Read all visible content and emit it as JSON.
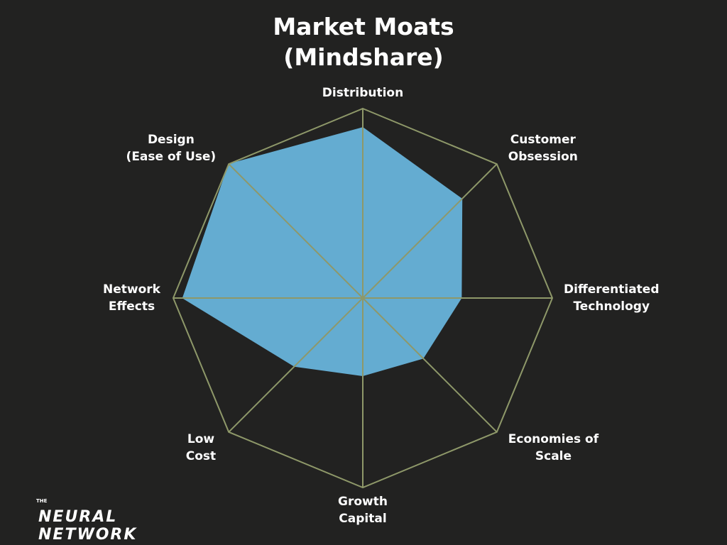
{
  "chart_data": {
    "type": "radar",
    "title": "Market Moats\n(Mindshare)",
    "categories": [
      "Distribution",
      "Customer\nObsession",
      "Differentiated\nTechnology",
      "Economies of\nScale",
      "Growth\nCapital",
      "Low\nCost",
      "Network\nEffects",
      "Design\n(Ease of Use)"
    ],
    "values": [
      9,
      7.4,
      5.2,
      4.5,
      4.1,
      5.1,
      9.5,
      10
    ],
    "color": "#64acd1",
    "grid_color": "#8e9869",
    "ylim": [
      0,
      10
    ]
  },
  "logo": {
    "small": "THE",
    "text": "NEURAL NETWORK"
  }
}
